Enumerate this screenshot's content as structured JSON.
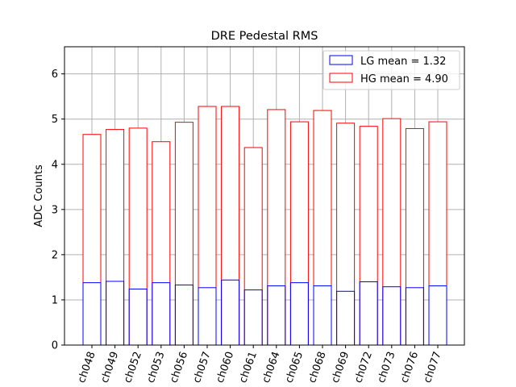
{
  "chart_data": {
    "type": "bar",
    "title": "DRE Pedestal RMS",
    "xlabel": "",
    "ylabel": "ADC Counts",
    "ylim": [
      0,
      6.6
    ],
    "yticks": [
      0,
      1,
      2,
      3,
      4,
      5,
      6
    ],
    "grid": true,
    "legend_position": "top-right",
    "categories": [
      "ch048",
      "ch049",
      "ch052",
      "ch053",
      "ch056",
      "ch057",
      "ch060",
      "ch061",
      "ch064",
      "ch065",
      "ch068",
      "ch069",
      "ch072",
      "ch073",
      "ch076",
      "ch077"
    ],
    "series": [
      {
        "name": "LG",
        "legend": "LG mean = 1.32",
        "color": "#0000ff",
        "values": [
          1.38,
          1.41,
          1.24,
          1.38,
          1.33,
          1.27,
          1.44,
          1.22,
          1.31,
          1.38,
          1.31,
          1.19,
          1.4,
          1.29,
          1.27,
          1.31
        ]
      },
      {
        "name": "HG",
        "legend": "HG mean = 4.90",
        "color": "#ff0000",
        "values": [
          4.66,
          4.77,
          4.8,
          4.5,
          4.93,
          5.28,
          5.28,
          4.37,
          5.21,
          4.94,
          5.19,
          4.91,
          4.84,
          5.01,
          4.79,
          4.94
        ]
      }
    ]
  }
}
